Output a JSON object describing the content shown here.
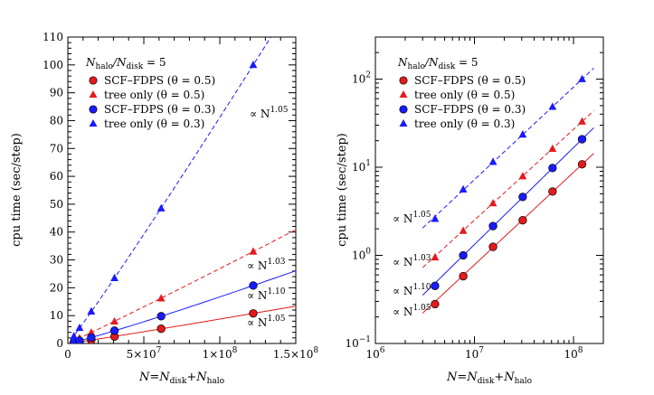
{
  "chart_data": [
    {
      "type": "scatter",
      "scale": "linear",
      "xlabel": {
        "prefix": "N=N",
        "sub1": "disk",
        "mid": "+N",
        "sub2": "halo"
      },
      "ylabel": "cpu time (sec/step)",
      "xlim": [
        0,
        150000000
      ],
      "ylim": [
        0,
        110
      ],
      "xticks": [
        {
          "value": 0,
          "label": "0"
        },
        {
          "value": 50000000,
          "label": "5×10",
          "sup": "7"
        },
        {
          "value": 100000000,
          "label": "1×10",
          "sup": "8"
        },
        {
          "value": 150000000,
          "label": "1.5×10",
          "sup": "8"
        }
      ],
      "yticks": [
        {
          "value": 0,
          "label": "0"
        },
        {
          "value": 10,
          "label": "10"
        },
        {
          "value": 20,
          "label": "20"
        },
        {
          "value": 30,
          "label": "30"
        },
        {
          "value": 40,
          "label": "40"
        },
        {
          "value": 50,
          "label": "50"
        },
        {
          "value": 60,
          "label": "60"
        },
        {
          "value": 70,
          "label": "70"
        },
        {
          "value": 80,
          "label": "80"
        },
        {
          "value": 90,
          "label": "90"
        },
        {
          "value": 100,
          "label": "100"
        },
        {
          "value": 110,
          "label": "110"
        }
      ],
      "legend_position": "top-left",
      "legend_header": {
        "n1": "N",
        "s1": "halo",
        "mid": "/N",
        "s2": "disk",
        "tail": " = 5"
      },
      "annotations": [
        {
          "text": "∝ N",
          "exp": "1.05",
          "series": 3
        },
        {
          "text": "∝ N",
          "exp": "1.03",
          "series": 1
        },
        {
          "text": "∝ N",
          "exp": "1.10",
          "series": 2
        },
        {
          "text": "∝ N",
          "exp": "1.05",
          "series": 0
        }
      ]
    },
    {
      "type": "scatter",
      "scale": "log",
      "xlabel": {
        "prefix": "N=N",
        "sub1": "disk",
        "mid": "+N",
        "sub2": "halo"
      },
      "ylabel": "cpu time (sec/step)",
      "xlim": [
        1000000,
        200000000
      ],
      "ylim": [
        0.1,
        300
      ],
      "xticks": [
        {
          "value": 1000000,
          "label": "10",
          "sup": "6"
        },
        {
          "value": 10000000,
          "label": "10",
          "sup": "7"
        },
        {
          "value": 100000000,
          "label": "10",
          "sup": "8"
        }
      ],
      "yticks": [
        {
          "value": 0.1,
          "label": "10",
          "sup": "−1"
        },
        {
          "value": 1,
          "label": "10",
          "sup": "0"
        },
        {
          "value": 10,
          "label": "10",
          "sup": "1"
        },
        {
          "value": 100,
          "label": "10",
          "sup": "2"
        }
      ],
      "legend_position": "top-left",
      "legend_header": {
        "n1": "N",
        "s1": "halo",
        "mid": "/N",
        "s2": "disk",
        "tail": " = 5"
      },
      "annotations": [
        {
          "text": "∝ N",
          "exp": "1.05",
          "series": 3
        },
        {
          "text": "∝ N",
          "exp": "1.03",
          "series": 1
        },
        {
          "text": "∝ N",
          "exp": "1.10",
          "series": 2
        },
        {
          "text": "∝ N",
          "exp": "1.05",
          "series": 0
        }
      ]
    }
  ],
  "series": [
    {
      "name": "SCF–FDPS (θ = 0.5)",
      "marker": "circle",
      "color": "#e41a1c",
      "line": "solid",
      "exponent": 1.05,
      "x": [
        4000000,
        7700000,
        15400000,
        30700000,
        61400000,
        122000000
      ],
      "y": [
        0.28,
        0.58,
        1.25,
        2.5,
        5.3,
        10.8
      ]
    },
    {
      "name": "tree only (θ = 0.5)",
      "marker": "triangle",
      "color": "#e41a1c",
      "line": "dashed",
      "exponent": 1.03,
      "x": [
        4000000,
        7700000,
        15400000,
        30700000,
        61400000,
        122000000
      ],
      "y": [
        0.95,
        1.9,
        3.9,
        7.9,
        16.2,
        33.0
      ]
    },
    {
      "name": "SCF–FDPS (θ = 0.3)",
      "marker": "circle",
      "color": "#1a1aff",
      "line": "solid",
      "exponent": 1.1,
      "x": [
        4000000,
        7700000,
        15400000,
        30700000,
        61400000,
        122000000
      ],
      "y": [
        0.45,
        1.0,
        2.15,
        4.6,
        9.8,
        20.8
      ]
    },
    {
      "name": "tree only (θ = 0.3)",
      "marker": "triangle",
      "color": "#1a1aff",
      "line": "dashed",
      "exponent": 1.05,
      "x": [
        4000000,
        7700000,
        15400000,
        30700000,
        61400000,
        122000000
      ],
      "y": [
        2.6,
        5.6,
        11.5,
        23.5,
        48.5,
        100.0
      ]
    }
  ]
}
